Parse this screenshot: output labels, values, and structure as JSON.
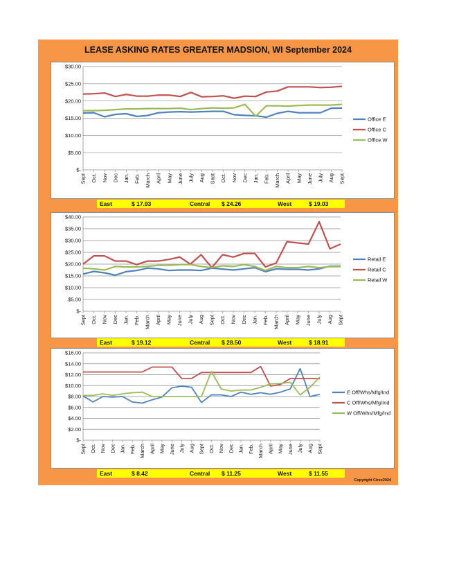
{
  "page": {
    "title": "LEASE ASKING RATES GREATER MADSION, WI  September 2024",
    "copyright": "Copyright Cirex2024"
  },
  "chart_data": [
    {
      "type": "line",
      "categories": [
        "Sept",
        "Oct.",
        "Nov",
        "Dec",
        "Jan.",
        "Feb.",
        "March",
        "April",
        "May",
        "June",
        "July",
        "Aug",
        "Sept",
        "Oct.",
        "Nov",
        "Dec",
        "Jan.",
        "Feb.",
        "March",
        "April",
        "May",
        "June",
        "July",
        "Aug",
        "Sept"
      ],
      "yticks": [
        "$30.00",
        "$25.00",
        "$20.00",
        "$15.00",
        "$10.00",
        "$5.00",
        "$-"
      ],
      "ylim": [
        0,
        30
      ],
      "series": [
        {
          "name": "Office E",
          "color": "#4F81BD",
          "values": [
            16.5,
            16.6,
            15.4,
            16.1,
            16.3,
            15.5,
            15.8,
            16.6,
            16.8,
            16.9,
            16.8,
            16.9,
            17.0,
            17.0,
            16.0,
            15.8,
            15.7,
            15.3,
            16.4,
            17.0,
            16.6,
            16.6,
            16.6,
            17.9,
            17.93
          ]
        },
        {
          "name": "Office C",
          "color": "#C0504D",
          "values": [
            22.0,
            22.1,
            22.3,
            21.3,
            21.9,
            21.4,
            21.4,
            21.7,
            21.7,
            21.3,
            22.5,
            21.2,
            21.3,
            21.5,
            20.8,
            21.4,
            21.3,
            22.6,
            22.9,
            24.1,
            24.1,
            24.1,
            23.9,
            24.0,
            24.26
          ]
        },
        {
          "name": "Office W",
          "color": "#9BBB59",
          "values": [
            17.2,
            17.2,
            17.3,
            17.5,
            17.7,
            17.7,
            17.8,
            17.8,
            17.8,
            17.9,
            17.5,
            17.8,
            18.0,
            17.9,
            18.0,
            19.0,
            15.6,
            18.6,
            18.6,
            18.5,
            18.7,
            18.8,
            18.8,
            18.8,
            19.03
          ]
        }
      ]
    },
    {
      "type": "line",
      "categories": [
        "Sept",
        "Oct.",
        "Nov",
        "Dec",
        "Jan.",
        "Feb.",
        "March",
        "April",
        "May",
        "June",
        "July",
        "Aug",
        "Sept",
        "Oct.",
        "Nov",
        "Dec",
        "Jan.",
        "Feb.",
        "March",
        "April",
        "May",
        "June",
        "July",
        "Aug",
        "Sept"
      ],
      "yticks": [
        "$40.00",
        "$35.00",
        "$30.00",
        "$25.00",
        "$20.00",
        "$15.00",
        "$10.00",
        "$5.00",
        "$-"
      ],
      "ylim": [
        0,
        40
      ],
      "series": [
        {
          "name": "Retail E",
          "color": "#4F81BD",
          "values": [
            15.8,
            16.9,
            16.3,
            15.3,
            16.8,
            17.3,
            18.3,
            18.0,
            17.3,
            17.5,
            17.5,
            17.3,
            18.3,
            17.9,
            17.5,
            18.0,
            18.5,
            16.8,
            18.0,
            17.8,
            17.8,
            17.5,
            18.0,
            19.1,
            19.12
          ]
        },
        {
          "name": "Retail C",
          "color": "#C0504D",
          "values": [
            20.0,
            23.5,
            23.5,
            21.3,
            21.3,
            19.8,
            21.3,
            21.3,
            22.0,
            23.0,
            20.0,
            24.0,
            18.5,
            24.0,
            23.0,
            24.5,
            24.5,
            18.8,
            20.5,
            29.5,
            29.0,
            28.5,
            38.0,
            26.5,
            28.5
          ]
        },
        {
          "name": "Retail W",
          "color": "#9BBB59",
          "values": [
            18.3,
            18.0,
            17.5,
            19.0,
            18.8,
            18.8,
            19.0,
            19.5,
            19.5,
            19.8,
            19.8,
            19.0,
            18.5,
            19.3,
            19.0,
            19.8,
            19.0,
            17.3,
            19.0,
            18.5,
            18.5,
            19.0,
            18.5,
            18.9,
            18.91
          ]
        }
      ]
    },
    {
      "type": "line",
      "categories": [
        "Sept",
        "Oct.",
        "Nov",
        "Dec",
        "Jan.",
        "Feb.",
        "March",
        "April",
        "May",
        "June",
        "July",
        "Aug",
        "Sept",
        "Oct.",
        "Nov",
        "Dec",
        "Jan.",
        "Feb.",
        "March",
        "April",
        "May",
        "June",
        "July",
        "Aug",
        "Sept"
      ],
      "yticks": [
        "$16.00",
        "$14.00",
        "$12.00",
        "$10.00",
        "$8.00",
        "$6.00",
        "$4.00",
        "$2.00",
        "$-"
      ],
      "ylim": [
        0,
        16
      ],
      "series": [
        {
          "name": "E Off/Whs/Mfg/Ind",
          "color": "#4F81BD",
          "values": [
            8.1,
            7.0,
            8.0,
            7.9,
            8.0,
            7.0,
            6.8,
            7.4,
            7.9,
            9.6,
            9.9,
            9.7,
            6.9,
            8.3,
            8.3,
            8.0,
            8.8,
            8.4,
            8.7,
            8.4,
            8.8,
            9.4,
            13.1,
            8.0,
            8.42
          ]
        },
        {
          "name": "C Off/Whs/Mfg/Ind",
          "color": "#C0504D",
          "values": [
            12.5,
            12.5,
            12.5,
            12.5,
            12.5,
            12.5,
            12.5,
            13.4,
            13.4,
            13.4,
            11.3,
            11.3,
            12.4,
            12.4,
            12.4,
            12.4,
            12.4,
            12.4,
            13.5,
            9.9,
            10.2,
            11.3,
            11.3,
            11.3,
            11.25
          ]
        },
        {
          "name": "W Off/Whs/Mfg/Ind",
          "color": "#9BBB59",
          "values": [
            8.2,
            8.2,
            8.5,
            8.2,
            8.5,
            8.7,
            8.8,
            8.0,
            8.0,
            8.0,
            8.0,
            8.0,
            8.0,
            12.6,
            9.4,
            9.0,
            9.2,
            9.2,
            9.7,
            10.3,
            10.4,
            10.6,
            8.3,
            9.7,
            11.55
          ]
        }
      ]
    }
  ],
  "summaries": [
    {
      "east_label": "East",
      "east_value": "$    17.93",
      "central_label": "Central",
      "central_value": "$    24.26",
      "west_label": "West",
      "west_value": "$    19.03"
    },
    {
      "east_label": "East",
      "east_value": "$    19.12",
      "central_label": "Central",
      "central_value": "$    28.50",
      "west_label": "West",
      "west_value": "$    18.91"
    },
    {
      "east_label": "East",
      "east_value": "$     8.42",
      "central_label": "Central",
      "central_value": "$    11.25",
      "west_label": "West",
      "west_value": "$    11.55"
    }
  ]
}
